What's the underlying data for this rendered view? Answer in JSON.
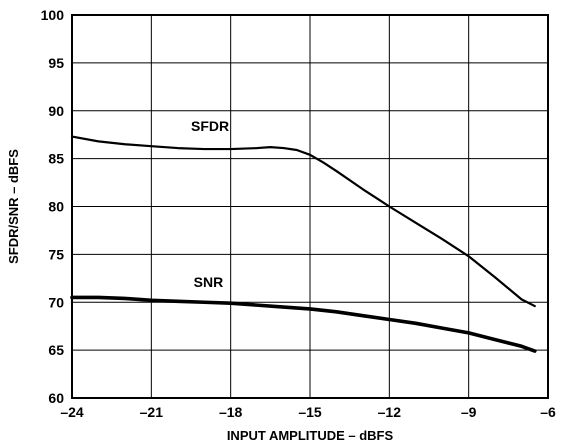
{
  "chart_data": {
    "type": "line",
    "title": "",
    "xlabel": "INPUT AMPLITUDE – dBFS",
    "ylabel": "SFDR/SNR – dBFS",
    "xlim": [
      -24,
      -6
    ],
    "ylim": [
      60,
      100
    ],
    "x_ticks": [
      -24,
      -21,
      -18,
      -15,
      -12,
      -9,
      -6
    ],
    "x_tick_labels": [
      "–24",
      "–21",
      "–18",
      "–15",
      "–12",
      "–9",
      "–6"
    ],
    "y_ticks": [
      60,
      65,
      70,
      75,
      80,
      85,
      90,
      95,
      100
    ],
    "y_tick_labels": [
      "60",
      "65",
      "70",
      "75",
      "80",
      "85",
      "90",
      "95",
      "100"
    ],
    "grid": true,
    "legend": "inline labels",
    "series": [
      {
        "name": "SFDR",
        "color": "#000000",
        "x": [
          -24,
          -23,
          -22,
          -21,
          -20,
          -19,
          -18,
          -17,
          -16.5,
          -16,
          -15.5,
          -15,
          -14.5,
          -14,
          -13,
          -12,
          -11,
          -10,
          -9,
          -8,
          -7,
          -6.5
        ],
        "y": [
          87.3,
          86.8,
          86.5,
          86.3,
          86.1,
          86.0,
          86.0,
          86.1,
          86.2,
          86.1,
          85.9,
          85.4,
          84.6,
          83.7,
          81.8,
          80.0,
          78.3,
          76.6,
          74.8,
          72.6,
          70.3,
          69.6
        ]
      },
      {
        "name": "SNR",
        "color": "#000000",
        "x": [
          -24,
          -23,
          -22,
          -21,
          -20,
          -19,
          -18,
          -17,
          -16,
          -15,
          -14,
          -13,
          -12,
          -11,
          -10,
          -9,
          -8,
          -7,
          -6.5
        ],
        "y": [
          70.5,
          70.5,
          70.4,
          70.2,
          70.1,
          70.0,
          69.9,
          69.7,
          69.5,
          69.3,
          69.0,
          68.6,
          68.2,
          67.8,
          67.3,
          66.8,
          66.1,
          65.4,
          64.9
        ]
      }
    ]
  }
}
